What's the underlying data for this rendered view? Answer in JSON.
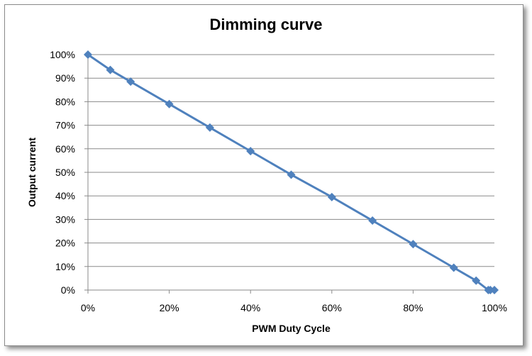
{
  "chart_data": {
    "type": "line",
    "title": "Dimming curve",
    "xlabel": "PWM Duty Cycle",
    "ylabel": "Output current",
    "xlim": [
      0,
      100
    ],
    "ylim": [
      0,
      100
    ],
    "x_ticks": [
      "0%",
      "20%",
      "40%",
      "60%",
      "80%",
      "100%"
    ],
    "y_ticks": [
      "0%",
      "10%",
      "20%",
      "30%",
      "40%",
      "50%",
      "60%",
      "70%",
      "80%",
      "90%",
      "100%"
    ],
    "grid": "horizontal",
    "legend": "none",
    "series": [
      {
        "color": "#4f81bd",
        "marker": "diamond",
        "points": [
          {
            "x": 0,
            "y": 100
          },
          {
            "x": 5.5,
            "y": 93.5
          },
          {
            "x": 10.5,
            "y": 88.5
          },
          {
            "x": 20,
            "y": 79
          },
          {
            "x": 30,
            "y": 69
          },
          {
            "x": 40,
            "y": 59
          },
          {
            "x": 50,
            "y": 49
          },
          {
            "x": 60,
            "y": 39.5
          },
          {
            "x": 70,
            "y": 29.5
          },
          {
            "x": 80,
            "y": 19.5
          },
          {
            "x": 90,
            "y": 9.5
          },
          {
            "x": 95.5,
            "y": 4
          },
          {
            "x": 98.5,
            "y": 0
          },
          {
            "x": 99,
            "y": 0
          },
          {
            "x": 100,
            "y": 0
          }
        ]
      }
    ]
  }
}
